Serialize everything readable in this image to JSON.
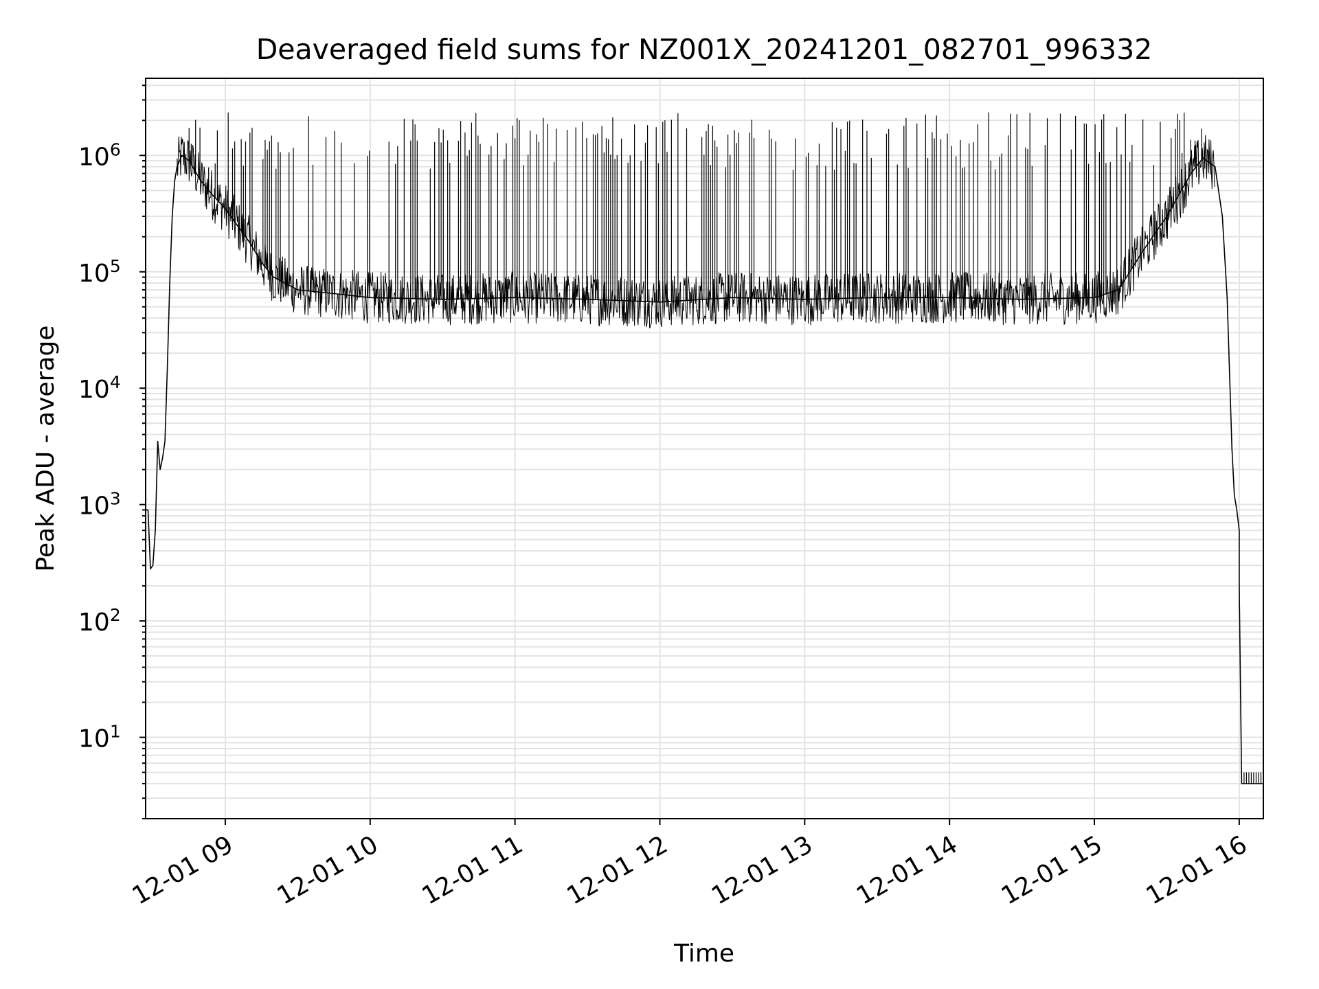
{
  "chart_data": {
    "type": "line",
    "title": "Deaveraged field sums for NZ001X_20241201_082701_996332",
    "xlabel": "Time",
    "ylabel": "Peak ADU - average",
    "yscale": "log",
    "ylim": [
      2,
      4600000
    ],
    "xlim": [
      "12-01 08:27",
      "12-01 16:10"
    ],
    "grid": true,
    "x_tick_labels": [
      "12-01 09",
      "12-01 10",
      "12-01 11",
      "12-01 12",
      "12-01 13",
      "12-01 14",
      "12-01 15",
      "12-01 16"
    ],
    "y_tick_labels": [
      {
        "base": "10",
        "exp": "1",
        "value": 10
      },
      {
        "base": "10",
        "exp": "2",
        "value": 100
      },
      {
        "base": "10",
        "exp": "3",
        "value": 1000
      },
      {
        "base": "10",
        "exp": "4",
        "value": 10000
      },
      {
        "base": "10",
        "exp": "5",
        "value": 100000
      },
      {
        "base": "10",
        "exp": "6",
        "value": 1000000
      }
    ],
    "line_color": "#000000",
    "grid_color": "#e3e3e3",
    "series": [
      {
        "x": [
          "12-01 08:27",
          "12-01 08:28",
          "12-01 08:29",
          "12-01 08:30",
          "12-01 08:31",
          "12-01 08:32",
          "12-01 08:33",
          "12-01 08:34",
          "12-01 08:35",
          "12-01 08:36",
          "12-01 08:37",
          "12-01 08:38",
          "12-01 08:39",
          "12-01 08:40",
          "12-01 08:42",
          "12-01 08:45",
          "12-01 08:50",
          "12-01 08:55",
          "12-01 09:00",
          "12-01 09:05",
          "12-01 09:10",
          "12-01 09:15",
          "12-01 09:20",
          "12-01 09:30",
          "12-01 09:45",
          "12-01 10:00",
          "12-01 10:30",
          "12-01 11:00",
          "12-01 11:30",
          "12-01 12:00",
          "12-01 12:30",
          "12-01 13:00",
          "12-01 13:30",
          "12-01 14:00",
          "12-01 14:30",
          "12-01 15:00",
          "12-01 15:10",
          "12-01 15:20",
          "12-01 15:30",
          "12-01 15:40",
          "12-01 15:45",
          "12-01 15:50",
          "12-01 15:53",
          "12-01 15:55",
          "12-01 15:57",
          "12-01 15:58",
          "12-01 15:59",
          "12-01 16:00",
          "12-01 16:00",
          "12-01 16:01",
          "12-01 16:05",
          "12-01 16:10"
        ],
        "y": [
          900,
          900,
          280,
          300,
          600,
          3500,
          2000,
          2500,
          3500,
          15000,
          80000,
          300000,
          600000,
          800000,
          1000000,
          900000,
          600000,
          450000,
          350000,
          250000,
          180000,
          120000,
          90000,
          70000,
          65000,
          60000,
          58000,
          60000,
          58000,
          55000,
          60000,
          58000,
          60000,
          60000,
          58000,
          60000,
          70000,
          150000,
          300000,
          700000,
          950000,
          800000,
          300000,
          60000,
          3000,
          1200,
          900,
          600,
          200,
          4,
          4,
          4
        ]
      }
    ]
  }
}
